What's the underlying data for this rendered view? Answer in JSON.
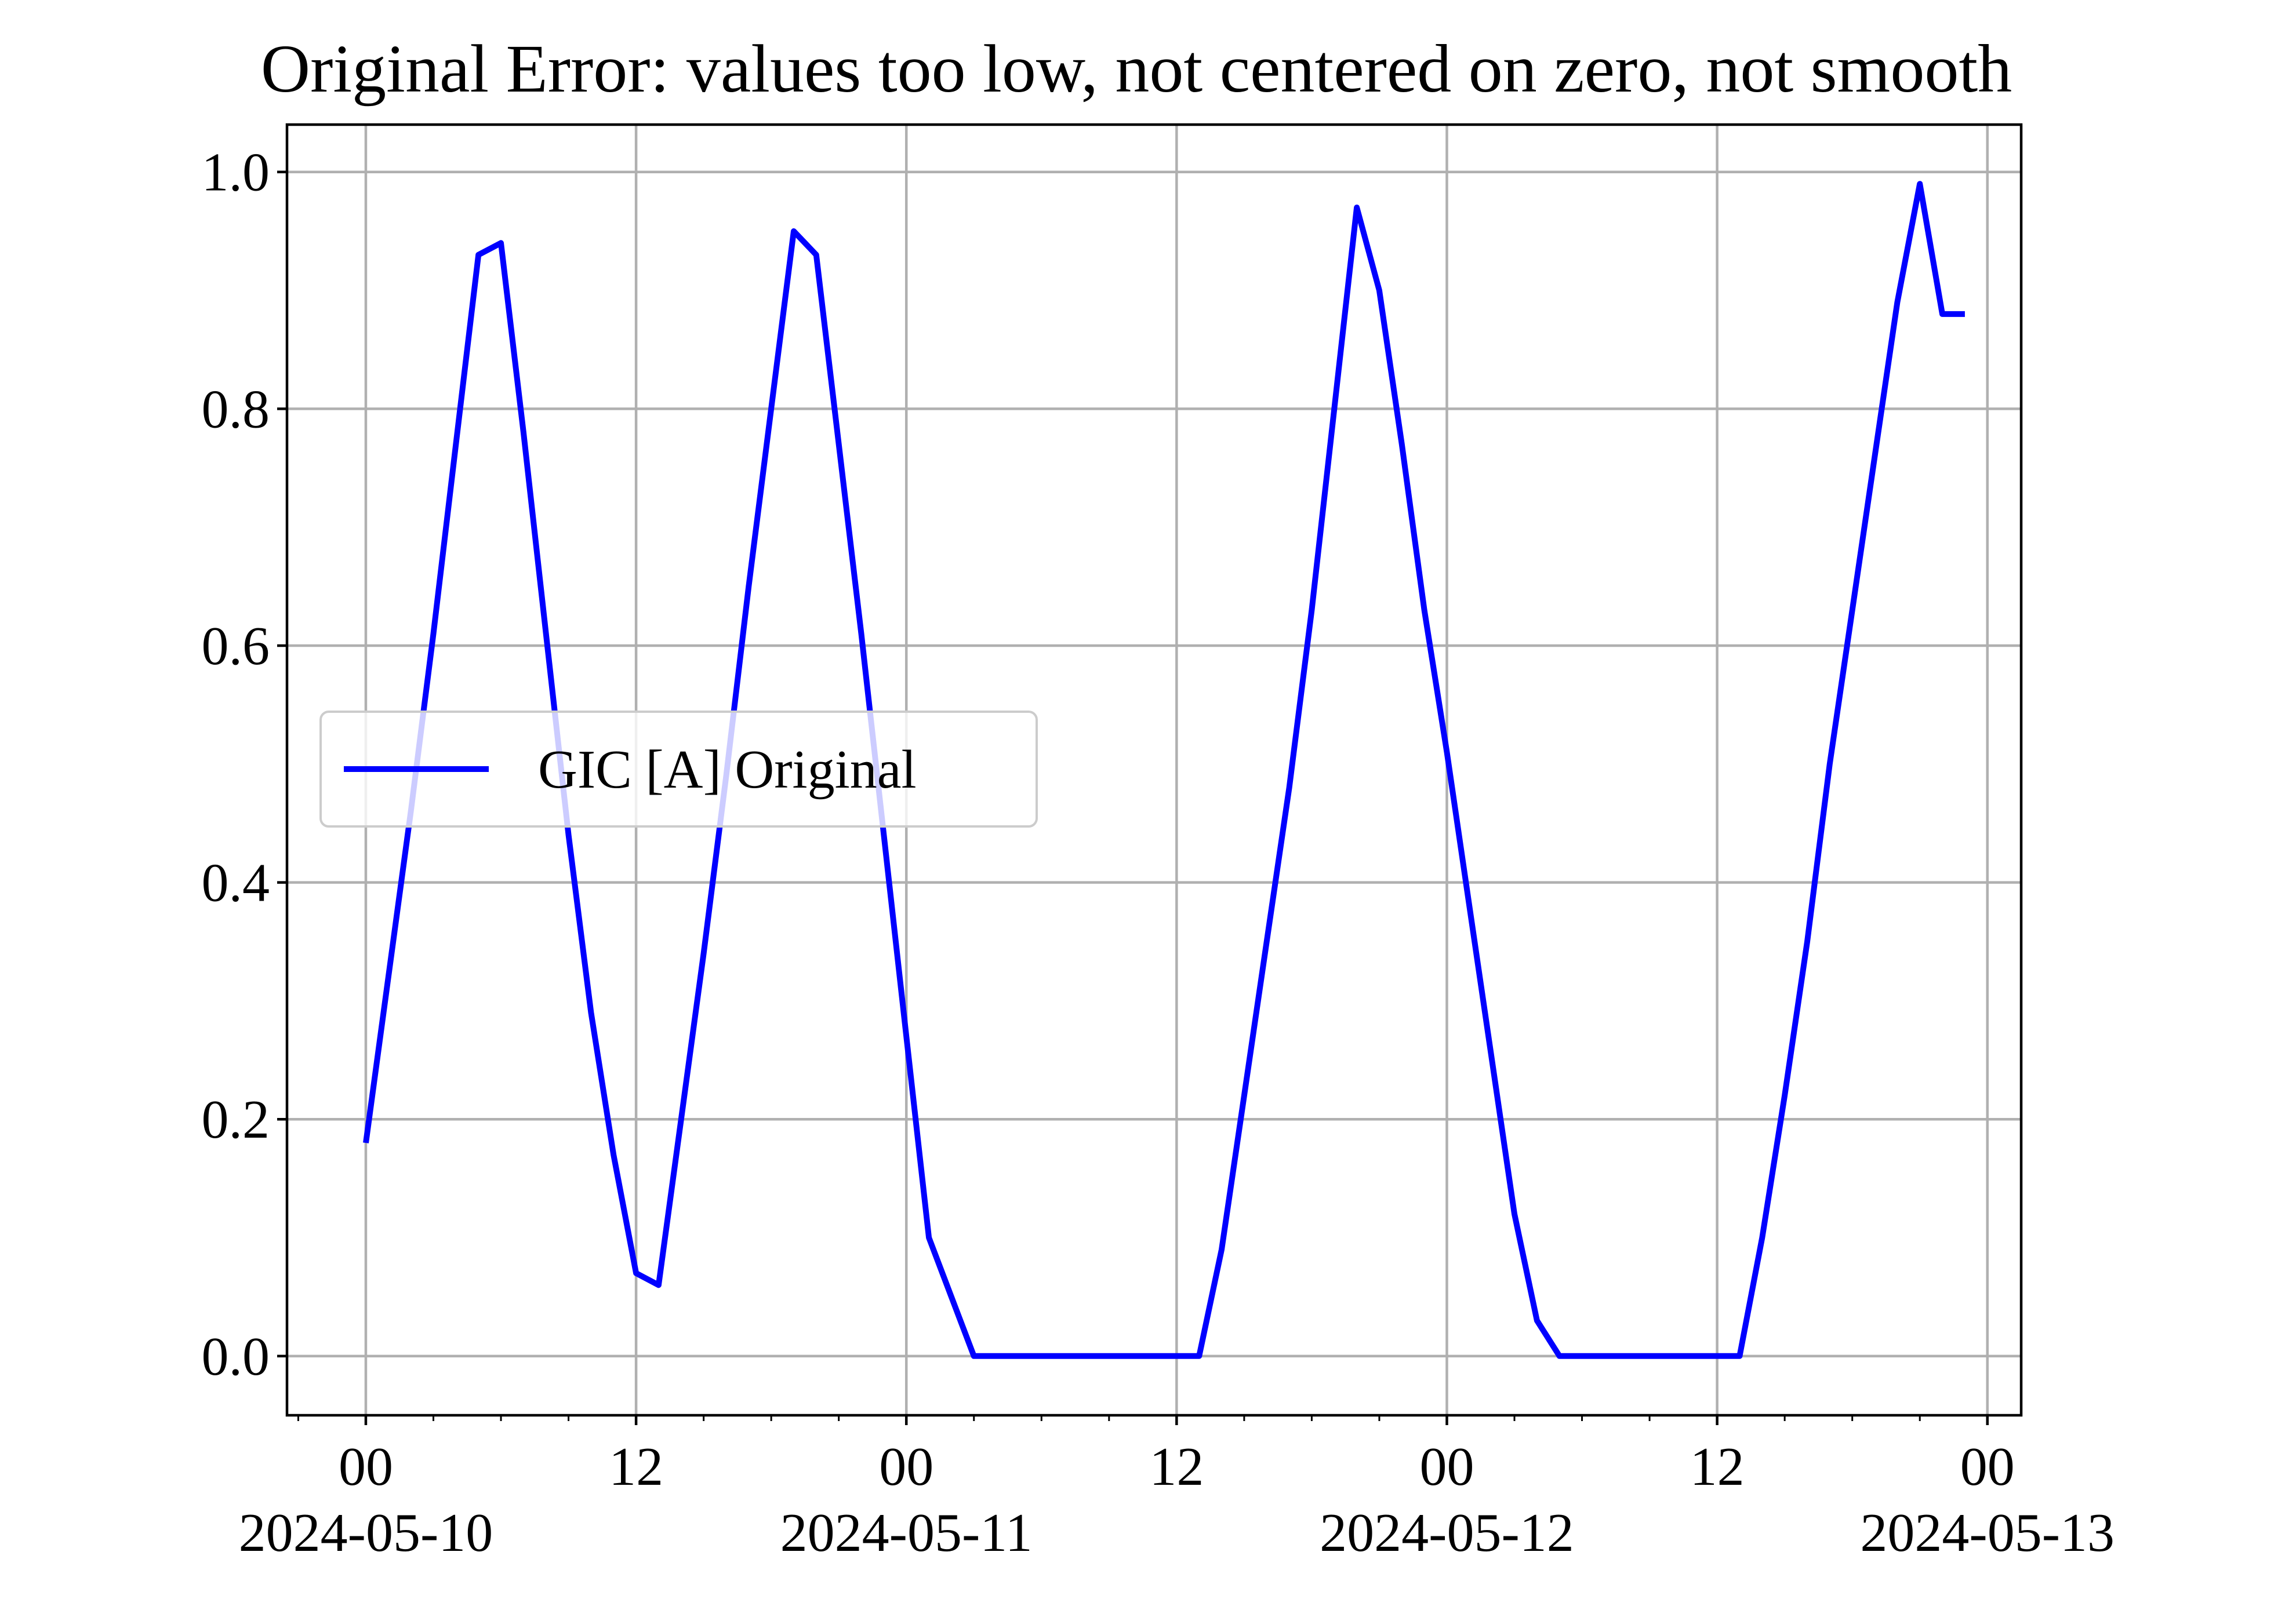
{
  "chart_data": {
    "type": "line",
    "title": "Original Error: values too low, not centered on zero, not smooth",
    "xlabel": "",
    "ylabel": "",
    "x_unit": "hours",
    "x_start": "2024-05-10 00:00",
    "xlim": [
      "2024-05-09 20:30",
      "2024-05-13 01:30"
    ],
    "ylim": [
      -0.05,
      1.04
    ],
    "grid": true,
    "legend_position": "center-left",
    "x_ticks": [
      {
        "hour": 0,
        "line1": "00",
        "line2": "2024-05-10"
      },
      {
        "hour": 12,
        "line1": "12",
        "line2": ""
      },
      {
        "hour": 24,
        "line1": "00",
        "line2": "2024-05-11"
      },
      {
        "hour": 36,
        "line1": "12",
        "line2": ""
      },
      {
        "hour": 48,
        "line1": "00",
        "line2": "2024-05-12"
      },
      {
        "hour": 60,
        "line1": "12",
        "line2": ""
      },
      {
        "hour": 72,
        "line1": "00",
        "line2": "2024-05-13"
      }
    ],
    "y_ticks": [
      {
        "value": 0.0,
        "label": "0.0"
      },
      {
        "value": 0.2,
        "label": "0.2"
      },
      {
        "value": 0.4,
        "label": "0.4"
      },
      {
        "value": 0.6,
        "label": "0.6"
      },
      {
        "value": 0.8,
        "label": "0.8"
      },
      {
        "value": 1.0,
        "label": "1.0"
      }
    ],
    "series": [
      {
        "name": "GIC [A] Original",
        "color": "#0000ff",
        "x": [
          "2024-05-10 00:00",
          "2024-05-10 01:00",
          "2024-05-10 02:00",
          "2024-05-10 03:00",
          "2024-05-10 04:00",
          "2024-05-10 05:00",
          "2024-05-10 06:00",
          "2024-05-10 07:00",
          "2024-05-10 08:00",
          "2024-05-10 09:00",
          "2024-05-10 10:00",
          "2024-05-10 11:00",
          "2024-05-10 12:00",
          "2024-05-10 13:00",
          "2024-05-10 14:00",
          "2024-05-10 15:00",
          "2024-05-10 16:00",
          "2024-05-10 17:00",
          "2024-05-10 18:00",
          "2024-05-10 19:00",
          "2024-05-10 20:00",
          "2024-05-10 21:00",
          "2024-05-10 22:00",
          "2024-05-10 23:00",
          "2024-05-11 00:00",
          "2024-05-11 01:00",
          "2024-05-11 02:00",
          "2024-05-11 03:00",
          "2024-05-11 04:00",
          "2024-05-11 05:00",
          "2024-05-11 06:00",
          "2024-05-11 07:00",
          "2024-05-11 08:00",
          "2024-05-11 09:00",
          "2024-05-11 10:00",
          "2024-05-11 11:00",
          "2024-05-11 12:00",
          "2024-05-11 13:00",
          "2024-05-11 14:00",
          "2024-05-11 15:00",
          "2024-05-11 16:00",
          "2024-05-11 17:00",
          "2024-05-11 18:00",
          "2024-05-11 19:00",
          "2024-05-11 20:00",
          "2024-05-11 21:00",
          "2024-05-11 22:00",
          "2024-05-11 23:00",
          "2024-05-12 00:00",
          "2024-05-12 01:00",
          "2024-05-12 02:00",
          "2024-05-12 03:00",
          "2024-05-12 04:00",
          "2024-05-12 05:00",
          "2024-05-12 06:00",
          "2024-05-12 07:00",
          "2024-05-12 08:00",
          "2024-05-12 09:00",
          "2024-05-12 10:00",
          "2024-05-12 11:00",
          "2024-05-12 12:00",
          "2024-05-12 13:00",
          "2024-05-12 14:00",
          "2024-05-12 15:00",
          "2024-05-12 16:00",
          "2024-05-12 17:00",
          "2024-05-12 18:00",
          "2024-05-12 19:00",
          "2024-05-12 20:00",
          "2024-05-12 21:00",
          "2024-05-12 22:00",
          "2024-05-12 23:00"
        ],
        "values": [
          0.18,
          0.32,
          0.46,
          0.61,
          0.77,
          0.93,
          0.94,
          0.78,
          0.61,
          0.44,
          0.29,
          0.17,
          0.07,
          0.06,
          0.2,
          0.34,
          0.49,
          0.65,
          0.8,
          0.95,
          0.93,
          0.77,
          0.61,
          0.44,
          0.27,
          0.1,
          0.05,
          0.0,
          0.0,
          0.0,
          0.0,
          0.0,
          0.0,
          0.0,
          0.0,
          0.0,
          0.0,
          0.0,
          0.09,
          0.22,
          0.35,
          0.48,
          0.63,
          0.8,
          0.97,
          0.9,
          0.77,
          0.63,
          0.51,
          0.38,
          0.25,
          0.12,
          0.03,
          0.0,
          0.0,
          0.0,
          0.0,
          0.0,
          0.0,
          0.0,
          0.0,
          0.0,
          0.1,
          0.22,
          0.35,
          0.5,
          0.63,
          0.76,
          0.89,
          0.99,
          0.88,
          0.88
        ]
      }
    ]
  }
}
